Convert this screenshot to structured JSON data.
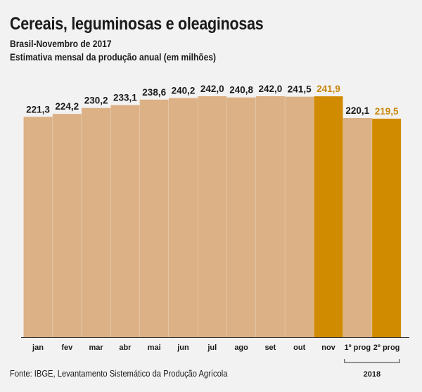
{
  "title": "Cereais, leguminosas e oleaginosas",
  "subtitle": "Brasil-Novembro de 2017",
  "description": "Estimativa mensal da produção anual (em milhões)",
  "source": "Fonte: IBGE, Levantamento Sistemático da Produção Agrícola",
  "colors": {
    "bar": "#dcb185",
    "highlight": "#d18b00",
    "highlight_label": "#c8860a",
    "axis": "#333333"
  },
  "chart_data": {
    "type": "bar",
    "categories": [
      "jan",
      "fev",
      "mar",
      "abr",
      "mai",
      "jun",
      "jul",
      "ago",
      "set",
      "out",
      "nov",
      "1º prog",
      "2º prog"
    ],
    "values": [
      221.3,
      224.2,
      230.2,
      233.1,
      238.6,
      240.2,
      242.0,
      240.8,
      242.0,
      241.5,
      241.9,
      220.1,
      219.5
    ],
    "value_labels": [
      "221,3",
      "224,2",
      "230,2",
      "233,1",
      "238,6",
      "240,2",
      "242,0",
      "240,8",
      "242,0",
      "241,5",
      "241,9",
      "220,1",
      "219,5"
    ],
    "highlighted": [
      "nov",
      "2º prog"
    ],
    "group_label": "2018",
    "group_categories": [
      "1º prog",
      "2º prog"
    ],
    "ylim": [
      0,
      242
    ]
  }
}
